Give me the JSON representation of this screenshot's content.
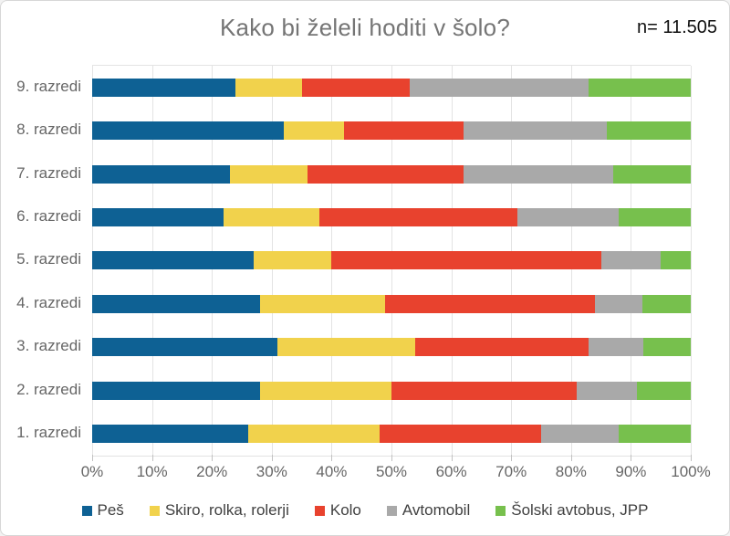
{
  "header": {
    "title": "Kako bi želeli hoditi v šolo?",
    "sample_label": "n= 11.505"
  },
  "colors": {
    "pes_blue": "#0e6194",
    "skiro_yellow": "#f1d24c",
    "kolo_red": "#e8422e",
    "avto_gray": "#a9a9a9",
    "bus_green": "#77c04d",
    "grid": "#e3e3e3",
    "axis_text": "#666666",
    "title_text": "#757575",
    "legend_text": "#404040"
  },
  "chart_data": {
    "type": "bar",
    "stacked": true,
    "orientation": "horizontal",
    "title": "Kako bi želeli hoditi v šolo?",
    "annotation": "n= 11.505",
    "unit": "%",
    "xlim": [
      0,
      100
    ],
    "grid": true,
    "legend_position": "bottom",
    "x_ticks": [
      "0%",
      "10%",
      "20%",
      "30%",
      "40%",
      "50%",
      "60%",
      "70%",
      "80%",
      "90%",
      "100%"
    ],
    "categories": [
      "9. razredi",
      "8. razredi",
      "7. razredi",
      "6. razredi",
      "5. razredi",
      "4. razredi",
      "3. razredi",
      "2. razredi",
      "1. razredi"
    ],
    "series": [
      {
        "name": "Peš",
        "color": "#0e6194",
        "values": [
          24,
          32,
          23,
          22,
          27,
          28,
          31,
          28,
          26
        ]
      },
      {
        "name": "Skiro, rolka, rolerji",
        "color": "#f1d24c",
        "values": [
          11,
          10,
          13,
          16,
          13,
          21,
          23,
          22,
          22
        ]
      },
      {
        "name": "Kolo",
        "color": "#e8422e",
        "values": [
          18,
          20,
          26,
          33,
          45,
          35,
          29,
          31,
          27
        ]
      },
      {
        "name": "Avtomobil",
        "color": "#a9a9a9",
        "values": [
          30,
          24,
          25,
          17,
          10,
          8,
          9,
          10,
          13
        ]
      },
      {
        "name": "Šolski avtobus, JPP",
        "color": "#77c04d",
        "values": [
          17,
          14,
          13,
          12,
          5,
          8,
          8,
          9,
          12
        ]
      }
    ]
  }
}
